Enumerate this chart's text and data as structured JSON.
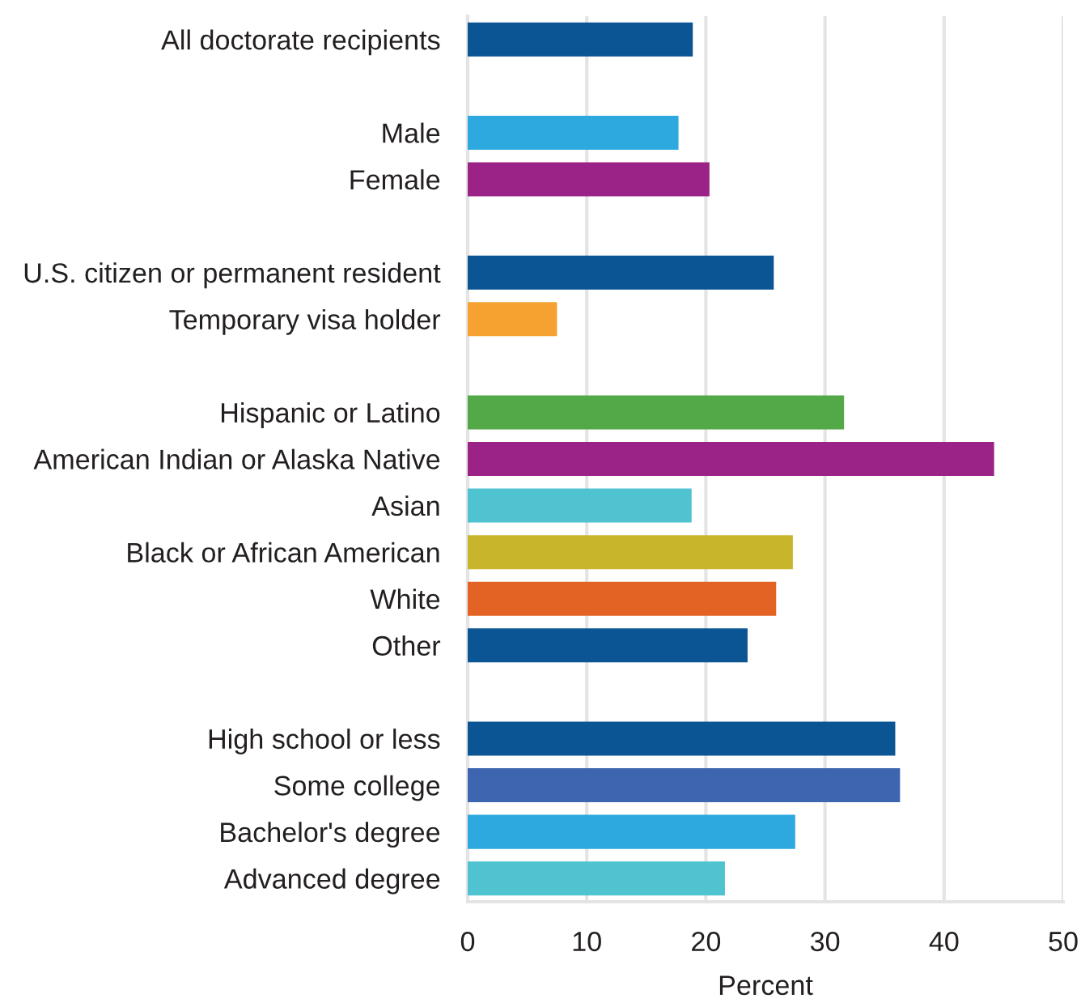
{
  "chart_data": {
    "type": "bar",
    "orientation": "horizontal",
    "xlabel": "Percent",
    "categories": [
      "All doctorate recipients",
      null,
      "Male",
      "Female",
      null,
      "U.S. citizen or permanent resident",
      "Temporary visa holder",
      null,
      "Hispanic or Latino",
      "American Indian or Alaska Native",
      "Asian",
      "Black or African American",
      "White",
      "Other",
      null,
      "High school or less",
      "Some college",
      "Bachelor's degree",
      "Advanced degree"
    ],
    "values": [
      18.9,
      null,
      17.7,
      20.3,
      null,
      25.7,
      7.5,
      null,
      31.6,
      44.2,
      18.8,
      27.3,
      25.9,
      23.5,
      null,
      35.9,
      36.3,
      27.5,
      21.6
    ],
    "colors": [
      "#0b5594",
      null,
      "#2ea9df",
      "#9b2387",
      null,
      "#0b5594",
      "#f5a230",
      null,
      "#53a848",
      "#9b2387",
      "#4fc3d0",
      "#c9b52b",
      "#e36324",
      "#0b5594",
      null,
      "#0b5594",
      "#3e65b0",
      "#2ea9df",
      "#4fc3d0"
    ],
    "xlim": [
      0,
      50
    ],
    "xticks": [
      0,
      10,
      20,
      30,
      40,
      50
    ],
    "grid": "x"
  }
}
